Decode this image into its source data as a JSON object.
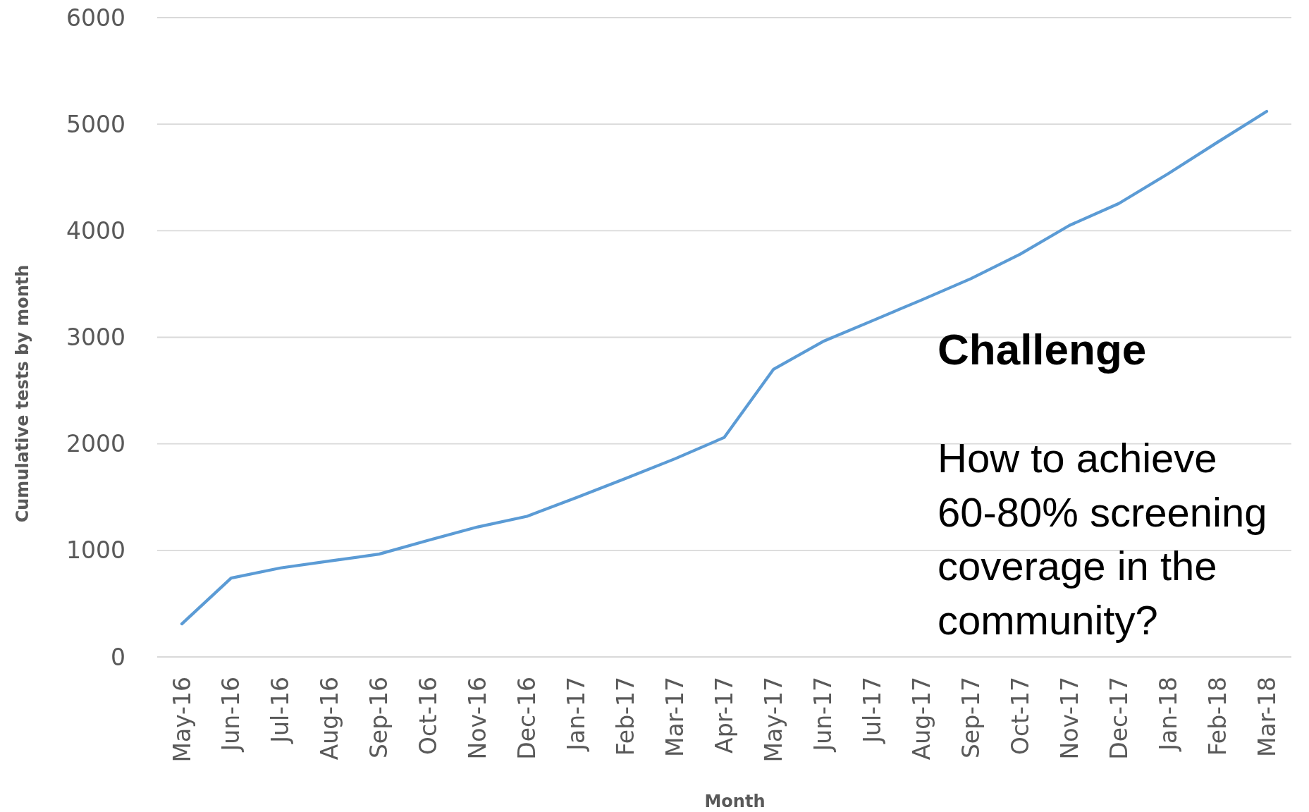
{
  "chart_data": {
    "type": "line",
    "xlabel": "Month",
    "ylabel": "Cumulative tests by month",
    "categories": [
      "May-16",
      "Jun-16",
      "Jul-16",
      "Aug-16",
      "Sep-16",
      "Oct-16",
      "Nov-16",
      "Dec-16",
      "Jan-17",
      "Feb-17",
      "Mar-17",
      "Apr-17",
      "May-17",
      "Jun-17",
      "Jul-17",
      "Aug-17",
      "Sep-17",
      "Oct-17",
      "Nov-17",
      "Dec-17",
      "Jan-18",
      "Feb-18",
      "Mar-18"
    ],
    "series": [
      {
        "color": "#5b9bd5",
        "values": [
          310,
          740,
          835,
          900,
          965,
          1095,
          1220,
          1320,
          1495,
          1675,
          1860,
          2060,
          2700,
          2960,
          3155,
          3350,
          3550,
          3780,
          4050,
          4255,
          4535,
          4830,
          5120
        ]
      }
    ],
    "ylim": [
      0,
      6000
    ],
    "yticks": [
      0,
      1000,
      2000,
      3000,
      4000,
      5000,
      6000
    ],
    "grid": "y",
    "line_style": "solid",
    "annotations": [
      "Challenge",
      "How to achieve\n60-80% screening\ncoverage in the\ncommunity?"
    ]
  }
}
